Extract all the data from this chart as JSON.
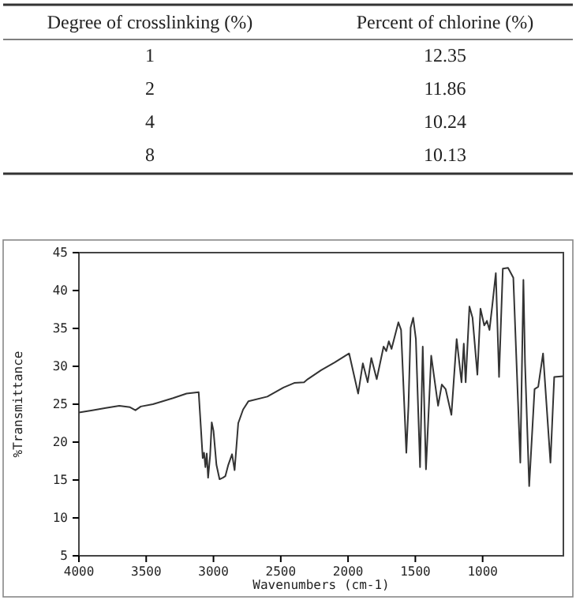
{
  "chart_data": [
    {
      "type": "other",
      "xlabel": "Degree of crosslinking (%)",
      "ylabel": "Percent of chlorine (%)",
      "categories": [
        "1",
        "2",
        "4",
        "8"
      ],
      "values": [
        12.35,
        11.86,
        10.24,
        10.13
      ],
      "data_labels": true
    },
    {
      "type": "line",
      "xlabel": "Wavenumbers (cm-1)",
      "ylabel": "%Transmittance",
      "xlim": [
        4000,
        400
      ],
      "ylim": [
        5,
        45
      ],
      "xticks": [
        4000,
        3500,
        3000,
        2500,
        2000,
        1500,
        1000
      ],
      "yticks": [
        5,
        10,
        15,
        20,
        25,
        30,
        35,
        40,
        45
      ],
      "grid": false,
      "series": [
        {
          "color": "#333333",
          "x": [
            4000,
            3900,
            3800,
            3700,
            3620,
            3580,
            3540,
            3450,
            3300,
            3200,
            3110,
            3095,
            3080,
            3070,
            3060,
            3050,
            3040,
            3025,
            3013,
            3000,
            2978,
            2955,
            2930,
            2912,
            2890,
            2862,
            2843,
            2816,
            2780,
            2740,
            2600,
            2480,
            2400,
            2327,
            2300,
            2200,
            2100,
            1992,
            1925,
            1890,
            1854,
            1827,
            1787,
            1736,
            1716,
            1697,
            1677,
            1626,
            1606,
            1567,
            1551,
            1535,
            1516,
            1496,
            1465,
            1445,
            1421,
            1382,
            1331,
            1303,
            1275,
            1232,
            1193,
            1157,
            1140,
            1126,
            1098,
            1075,
            1039,
            1016,
            988,
            968,
            949,
            929,
            902,
            878,
            850,
            811,
            772,
            720,
            697,
            685,
            654,
            614,
            587,
            551,
            496,
            468,
            400
          ],
          "values": [
            23.9,
            24.2,
            24.5,
            24.8,
            24.6,
            24.2,
            24.7,
            25.0,
            25.8,
            26.4,
            26.6,
            22.3,
            17.9,
            18.6,
            16.7,
            18.5,
            15.3,
            18.2,
            22.6,
            21.5,
            17.0,
            15.1,
            15.3,
            15.5,
            17.0,
            18.4,
            16.3,
            22.5,
            24.3,
            25.4,
            26.0,
            27.2,
            27.8,
            27.9,
            28.3,
            29.5,
            30.5,
            31.7,
            26.4,
            30.4,
            27.9,
            31.1,
            28.3,
            32.6,
            32.0,
            33.3,
            32.3,
            35.8,
            34.8,
            18.6,
            24.8,
            35.1,
            36.4,
            33.6,
            16.7,
            32.6,
            16.4,
            31.4,
            24.8,
            27.6,
            27.0,
            23.6,
            33.6,
            27.9,
            33.0,
            27.9,
            37.9,
            36.4,
            28.9,
            37.6,
            35.4,
            36.0,
            34.8,
            37.9,
            42.3,
            28.6,
            42.9,
            43.0,
            41.7,
            17.3,
            41.4,
            30.5,
            14.2,
            27.0,
            27.3,
            31.7,
            17.3,
            28.6,
            28.7
          ]
        }
      ]
    }
  ]
}
